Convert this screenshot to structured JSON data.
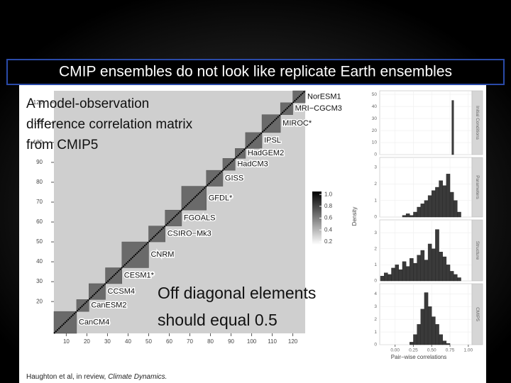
{
  "title": "CMIP ensembles do not look like replicate Earth ensembles",
  "annotations": {
    "matrix_note": [
      "A model-observation",
      "difference correlation matrix",
      "from CMIP5"
    ],
    "diagonal_note": [
      "Off diagonal elements",
      "should equal 0.5"
    ]
  },
  "citation": {
    "text": "Haughton et al, in review, ",
    "journal": "Climate Dynamics."
  },
  "matrix": {
    "xlim": [
      4,
      126
    ],
    "ylim": [
      4,
      126
    ],
    "xticks": [
      10,
      20,
      30,
      40,
      50,
      60,
      70,
      80,
      90,
      100,
      110,
      120
    ],
    "yticks": [
      20,
      30,
      40,
      50,
      60,
      70,
      80,
      90,
      100,
      110,
      120
    ],
    "models": [
      {
        "label": "CanCM4",
        "range": [
          4,
          15
        ]
      },
      {
        "label": "CanESM2",
        "range": [
          15,
          21
        ]
      },
      {
        "label": "CCSM4",
        "range": [
          21,
          29
        ]
      },
      {
        "label": "CESM1*",
        "range": [
          29,
          37
        ]
      },
      {
        "label": "CNRM",
        "range": [
          37,
          50
        ]
      },
      {
        "label": "CSIRO−Mk3",
        "range": [
          50,
          58
        ]
      },
      {
        "label": "FGOALS",
        "range": [
          58,
          66
        ]
      },
      {
        "label": "GFDL*",
        "range": [
          66,
          78
        ]
      },
      {
        "label": "GISS",
        "range": [
          78,
          86
        ]
      },
      {
        "label": "HadCM3",
        "range": [
          86,
          92
        ]
      },
      {
        "label": "HadGEM2",
        "range": [
          92,
          97
        ]
      },
      {
        "label": "IPSL",
        "range": [
          97,
          105
        ]
      },
      {
        "label": "MIROC*",
        "range": [
          105,
          114
        ]
      },
      {
        "label": "MRI−CGCM3",
        "range": [
          114,
          120
        ]
      },
      {
        "label": "NorESM1",
        "range": [
          120,
          126
        ]
      }
    ]
  },
  "colorbar": {
    "lim": [
      0.15,
      1.05
    ],
    "ticks": [
      {
        "value": 1,
        "label": "1.0"
      },
      0.8,
      0.6,
      0.4,
      0.2
    ]
  },
  "histograms": {
    "type": "histogram",
    "xlabel": "Pair−wise correlations",
    "ylabel": "Density",
    "xlim": [
      -0.21,
      1.05
    ],
    "xticks": [
      {
        "value": 0,
        "label": "0.00"
      },
      {
        "value": 0.25,
        "label": "0.25"
      },
      {
        "value": 0.5,
        "label": "0.50"
      },
      {
        "value": 0.75,
        "label": "0.75"
      },
      {
        "value": 1,
        "label": "1.00"
      }
    ],
    "panels": [
      {
        "name": "Initial Conditions",
        "ylim": [
          0,
          53
        ],
        "yticks": [
          0,
          10,
          20,
          30,
          40,
          50
        ],
        "bins": [
          0.775,
          0.8
        ],
        "values": [
          45
        ]
      },
      {
        "name": "Parameters",
        "ylim": [
          0,
          3.6
        ],
        "yticks": [
          0,
          1,
          2,
          3
        ],
        "bins": [
          0.1,
          0.15,
          0.2,
          0.25,
          0.3,
          0.35,
          0.4,
          0.45,
          0.5,
          0.55,
          0.6,
          0.65,
          0.7,
          0.75,
          0.8,
          0.85,
          0.9
        ],
        "values": [
          0.1,
          0.2,
          0.1,
          0.3,
          0.6,
          0.8,
          1.0,
          1.3,
          1.6,
          1.8,
          2.2,
          1.9,
          2.6,
          1.5,
          1.0,
          0.3
        ]
      },
      {
        "name": "Structure",
        "ylim": [
          0,
          3.8
        ],
        "yticks": [
          0,
          1,
          2,
          3
        ],
        "bins": [
          -0.2,
          -0.15,
          -0.1,
          -0.05,
          0,
          0.05,
          0.1,
          0.15,
          0.2,
          0.25,
          0.3,
          0.35,
          0.4,
          0.45,
          0.5,
          0.55,
          0.6,
          0.65,
          0.7,
          0.75,
          0.8,
          0.85,
          0.9
        ],
        "values": [
          0.3,
          0.5,
          0.4,
          0.8,
          1.0,
          0.7,
          1.2,
          0.9,
          1.4,
          1.1,
          1.6,
          1.9,
          1.3,
          2.3,
          2.0,
          3.2,
          1.8,
          1.5,
          1.0,
          0.6,
          0.4,
          0.2
        ]
      },
      {
        "name": "CMIP5",
        "ylim": [
          0,
          4.8
        ],
        "yticks": [
          0,
          1,
          2,
          3,
          4
        ],
        "bins": [
          0.2,
          0.25,
          0.3,
          0.35,
          0.4,
          0.45,
          0.5,
          0.55,
          0.6,
          0.65,
          0.7,
          0.75
        ],
        "values": [
          0.2,
          0.8,
          1.6,
          2.8,
          4.1,
          3.0,
          2.2,
          1.6,
          0.8,
          0.3,
          0.1
        ]
      }
    ]
  }
}
